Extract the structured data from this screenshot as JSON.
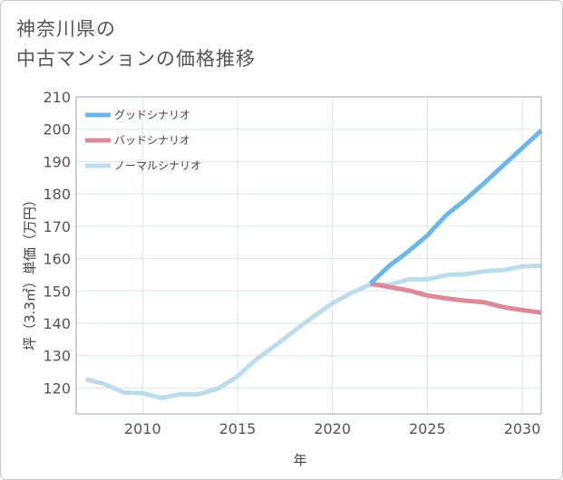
{
  "chart_data": {
    "type": "line",
    "title_line1": "神奈川県の",
    "title_line2": "中古マンションの価格推移",
    "xlabel": "年",
    "ylabel": "坪（3.3㎡）単価（万円）",
    "xlim": [
      2006.5,
      2031
    ],
    "ylim": [
      112,
      210
    ],
    "xticks": [
      2010,
      2015,
      2020,
      2025,
      2030
    ],
    "xtick_labels": [
      "2010",
      "2015",
      "2020",
      "2025",
      "2030"
    ],
    "yticks": [
      120,
      130,
      140,
      150,
      160,
      170,
      180,
      190,
      200,
      210
    ],
    "ytick_labels": [
      "120",
      "130",
      "140",
      "150",
      "160",
      "170",
      "180",
      "190",
      "200",
      "210"
    ],
    "grid": true,
    "legend_position": "top-left",
    "series": [
      {
        "name": "グッドシナリオ",
        "color": "#6cb6ea",
        "x": [
          2022,
          2023,
          2024,
          2025,
          2026,
          2027,
          2028,
          2029,
          2030,
          2031
        ],
        "y": [
          152.3,
          157.8,
          162.2,
          167.2,
          173.5,
          178.2,
          183.4,
          188.8,
          194.2,
          199.6
        ]
      },
      {
        "name": "バッドシナリオ",
        "color": "#dc8a93",
        "x": [
          2022,
          2023,
          2024,
          2025,
          2026,
          2027,
          2028,
          2029,
          2030,
          2031
        ],
        "y": [
          152.3,
          151.2,
          150.2,
          148.6,
          147.7,
          147.0,
          146.5,
          145.0,
          144.1,
          143.3
        ]
      },
      {
        "name": "ノーマルシナリオ",
        "color": "#bcdcec",
        "x": [
          2007,
          2008,
          2009,
          2010,
          2011,
          2012,
          2013,
          2014,
          2015,
          2016,
          2017,
          2018,
          2019,
          2020,
          2021,
          2022,
          2023,
          2024,
          2025,
          2026,
          2027,
          2028,
          2029,
          2030,
          2031
        ],
        "y": [
          122.7,
          121.2,
          118.6,
          118.4,
          116.9,
          118.1,
          118.1,
          119.9,
          123.6,
          128.9,
          133.2,
          137.7,
          142.1,
          146.2,
          149.4,
          152.0,
          151.9,
          153.6,
          153.6,
          154.9,
          155.2,
          156.1,
          156.4,
          157.6,
          157.8
        ]
      }
    ]
  }
}
